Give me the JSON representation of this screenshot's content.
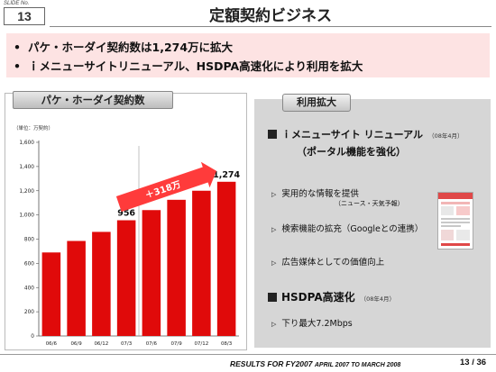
{
  "slide": {
    "label": "SLIDE No.",
    "number": "13"
  },
  "title": "定額契約ビジネス",
  "bullets": [
    "パケ・ホーダイ契約数は1,274万に拡大",
    "ｉメニューサイトリニューアル、HSDPA高速化により利用を拡大"
  ],
  "bullet_marker": "•",
  "chart_header": "パケ・ホーダイ契約数",
  "chart_data": {
    "type": "bar",
    "unit_label": "（単位：万契約）",
    "categories": [
      "06/6",
      "06/9",
      "06/12",
      "07/3",
      "07/6",
      "07/9",
      "07/12",
      "08/3"
    ],
    "values": [
      690,
      785,
      860,
      956,
      1040,
      1125,
      1200,
      1274
    ],
    "data_labels": {
      "3": "956",
      "7": "1,274"
    },
    "ylim": [
      0,
      1600
    ],
    "yticks": [
      "0",
      "200",
      "400",
      "600",
      "800",
      "1,000",
      "1,200",
      "1,400",
      "1,600"
    ],
    "annotation": "＋318万",
    "bar_color": "#e00a0a",
    "annotation_color": "#ff3b3b"
  },
  "panel": {
    "header": "利用拡大",
    "section1": {
      "title": "ｉメニューサイト リニューアル",
      "date": "（08年4月）",
      "subtitle": "（ポータル機能を強化）"
    },
    "items": [
      {
        "marker": "▷",
        "text": "実用的な情報を提供",
        "note": "（ニュース・天気予報）"
      },
      {
        "marker": "▷",
        "text": "検索機能の拡充（Googleとの連携）"
      },
      {
        "marker": "▷",
        "text": "広告媒体としての価値向上"
      }
    ],
    "section2": {
      "title": "HSDPA高速化",
      "date": "（08年4月）"
    },
    "item4": {
      "marker": "▷",
      "text": "下り最大7.2Mbps"
    }
  },
  "footer": {
    "main": "RESULTS FOR FY2007",
    "sub": "APRIL 2007 TO MARCH 2008",
    "page": "13 / 36"
  },
  "colors": {
    "bullet_bg": "#fde3e3",
    "panel_bg": "#d6d6d6"
  }
}
